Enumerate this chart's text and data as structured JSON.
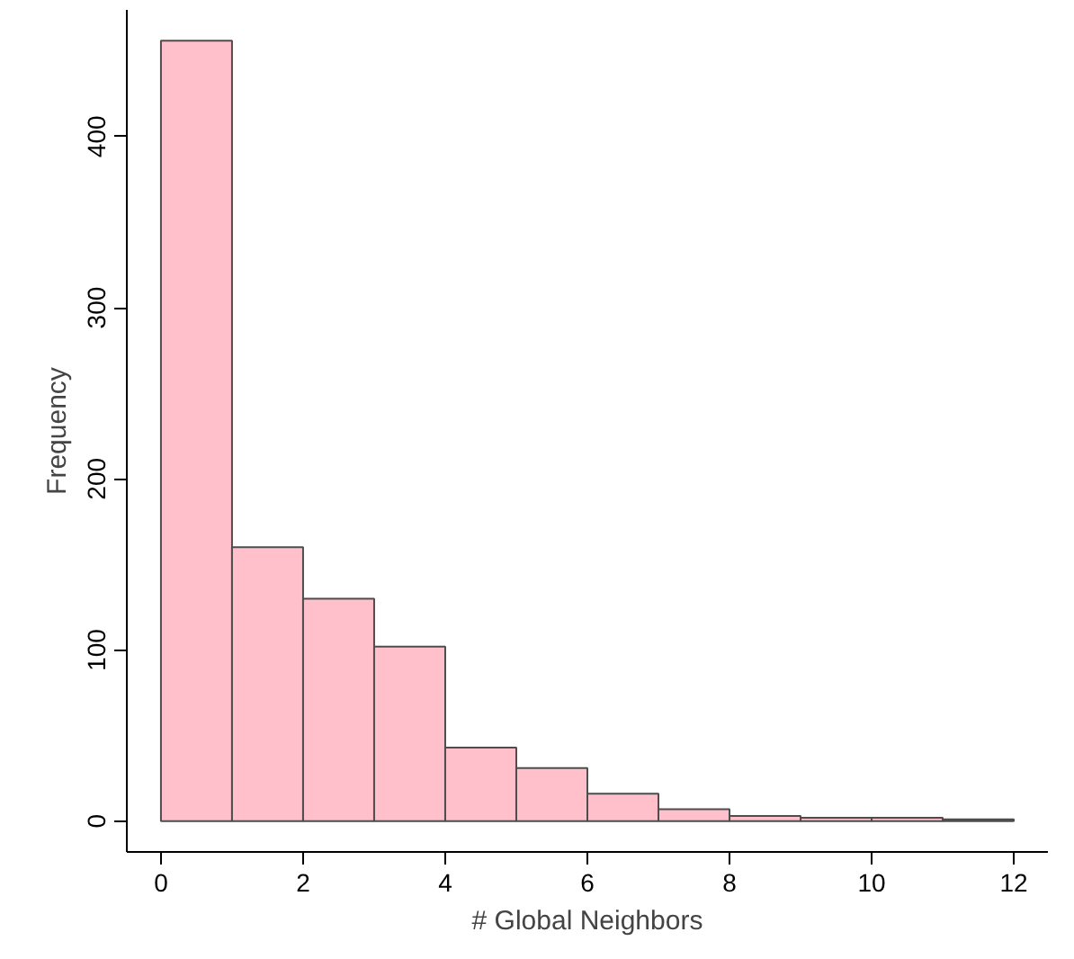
{
  "chart_data": {
    "type": "histogram",
    "xlabel": "# Global Neighbors",
    "ylabel": "Frequency",
    "bins": [
      0,
      1,
      2,
      3,
      4,
      5,
      6,
      7,
      8,
      9,
      10,
      11,
      12
    ],
    "values": [
      456,
      160,
      130,
      102,
      43,
      31,
      16,
      7,
      3,
      2,
      2,
      1
    ],
    "color": "#ffc0cb",
    "xlim": [
      -0.48,
      12.48
    ],
    "ylim": [
      -18,
      474
    ],
    "xticks": [
      0,
      2,
      4,
      6,
      8,
      10,
      12
    ],
    "yticks": [
      0,
      100,
      200,
      300,
      400
    ],
    "grid": false
  }
}
